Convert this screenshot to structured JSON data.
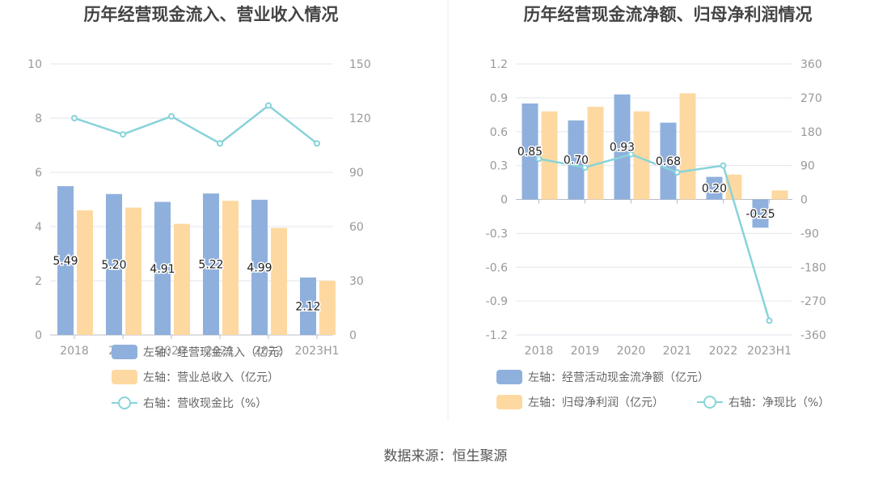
{
  "source": "数据来源：恒生聚源",
  "chart_data": [
    {
      "type": "bar",
      "title": "历年经营现金流入、营业收入情况",
      "categories": [
        "2018",
        "2019",
        "2020",
        "2021",
        "2022",
        "2023H1"
      ],
      "y_left": {
        "ticks": [
          "0",
          "2",
          "4",
          "6",
          "8",
          "10"
        ],
        "ylim": [
          0,
          10
        ]
      },
      "y_right": {
        "ticks": [
          "0",
          "30",
          "60",
          "90",
          "120",
          "150"
        ],
        "ylim": [
          0,
          150
        ]
      },
      "series": [
        {
          "name": "左轴：经营现金流入（亿元）",
          "axis": "left",
          "type": "bar",
          "color": "#8fb0dc",
          "values": [
            5.49,
            5.2,
            4.91,
            5.22,
            4.99,
            2.12
          ],
          "labels": [
            "5.49",
            "5.20",
            "4.91",
            "5.22",
            "4.99",
            "2.12"
          ]
        },
        {
          "name": "左轴：营业总收入（亿元）",
          "axis": "left",
          "type": "bar",
          "color": "#fdd9a1",
          "values": [
            4.6,
            4.7,
            4.1,
            4.95,
            3.95,
            2.0
          ]
        },
        {
          "name": "右轴：营收现金比（%）",
          "axis": "right",
          "type": "line",
          "color": "#88d3da",
          "values": [
            120,
            111,
            121,
            106,
            127,
            106
          ]
        }
      ],
      "grid": true,
      "legend": "bottom"
    },
    {
      "type": "bar",
      "title": "历年经营现金流净额、归母净利润情况",
      "categories": [
        "2018",
        "2019",
        "2020",
        "2021",
        "2022",
        "2023H1"
      ],
      "y_left": {
        "ticks": [
          "-1.2",
          "-0.9",
          "-0.6",
          "-0.3",
          "0",
          "0.3",
          "0.6",
          "0.9",
          "1.2"
        ],
        "ylim": [
          -1.2,
          1.2
        ]
      },
      "y_right": {
        "ticks": [
          "-360",
          "-270",
          "-180",
          "-90",
          "0",
          "90",
          "180",
          "270",
          "360"
        ],
        "ylim": [
          -360,
          360
        ]
      },
      "series": [
        {
          "name": "左轴：经营活动现金流净额（亿元）",
          "axis": "left",
          "type": "bar",
          "color": "#8fb0dc",
          "values": [
            0.85,
            0.7,
            0.93,
            0.68,
            0.2,
            -0.25
          ],
          "labels": [
            "0.85",
            "0.70",
            "0.93",
            "0.68",
            "0.20",
            "-0.25"
          ]
        },
        {
          "name": "左轴：归母净利润（亿元）",
          "axis": "left",
          "type": "bar",
          "color": "#fdd9a1",
          "values": [
            0.78,
            0.82,
            0.78,
            0.94,
            0.22,
            0.08
          ]
        },
        {
          "name": "右轴：净现比（%）",
          "axis": "right",
          "type": "line",
          "color": "#88d3da",
          "values": [
            108,
            85,
            120,
            72,
            90,
            -322
          ]
        }
      ],
      "grid": true,
      "legend": "bottom"
    }
  ]
}
